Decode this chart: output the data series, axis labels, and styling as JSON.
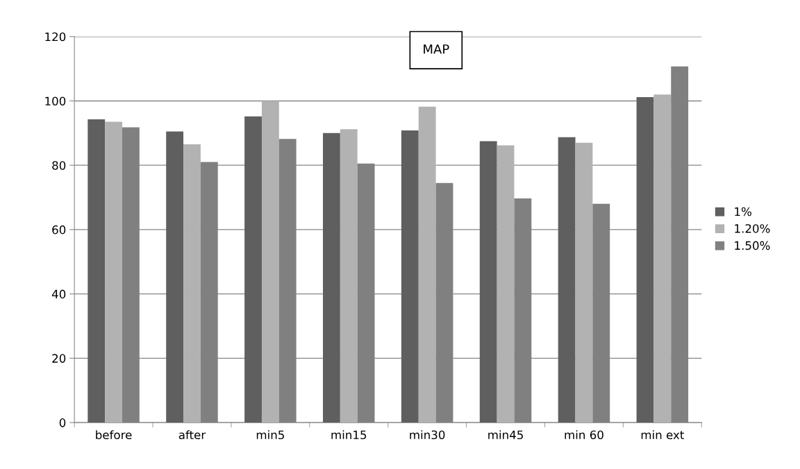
{
  "chart_data": {
    "type": "bar",
    "title": "MAP",
    "categories": [
      "before",
      "after",
      "min5",
      "min15",
      "min30",
      "min45",
      "min 60",
      "min ext"
    ],
    "series": [
      {
        "name": "1%",
        "color": "#5f5f5f",
        "values": [
          94.3,
          90.5,
          95.2,
          90,
          90.8,
          87.5,
          88.7,
          101.2
        ]
      },
      {
        "name": "1.20%",
        "color": "#b2b2b2",
        "values": [
          93.5,
          86.5,
          100,
          91.2,
          98.2,
          86.2,
          87,
          102
        ]
      },
      {
        "name": "1.50%",
        "color": "#808080",
        "values": [
          91.8,
          81,
          88.2,
          80.5,
          74.5,
          69.7,
          68,
          110.7
        ]
      }
    ],
    "ylim": [
      0,
      120
    ],
    "yticks": [
      0,
      20,
      40,
      60,
      80,
      100,
      120
    ],
    "grid": "y",
    "legend": "right"
  }
}
